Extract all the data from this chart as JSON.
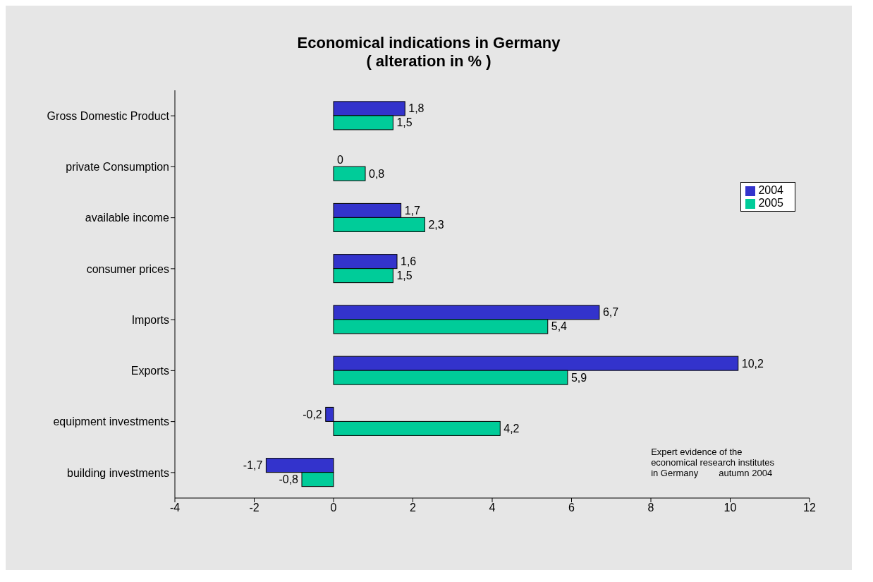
{
  "chart_data": {
    "type": "bar",
    "orientation": "horizontal",
    "title": "Economical indications in Germany",
    "subtitle": "( alteration in % )",
    "categories": [
      "Gross Domestic Product",
      "private Consumption",
      "available income",
      "consumer prices",
      "Imports",
      "Exports",
      "equipment investments",
      "building investments"
    ],
    "series": [
      {
        "name": "2004",
        "color": "#3333cc",
        "values": [
          1.8,
          0,
          1.7,
          1.6,
          6.7,
          10.2,
          -0.2,
          -1.7
        ],
        "value_labels": [
          "1,8",
          "0",
          "1,7",
          "1,6",
          "6,7",
          "10,2",
          "-0,2",
          "-1,7"
        ]
      },
      {
        "name": "2005",
        "color": "#00cc99",
        "values": [
          1.5,
          0.8,
          2.3,
          1.5,
          5.4,
          5.9,
          4.2,
          -0.8
        ],
        "value_labels": [
          "1,5",
          "0,8",
          "2,3",
          "1,5",
          "5,4",
          "5,9",
          "4,2",
          "-0,8"
        ]
      }
    ],
    "xlim": [
      -4,
      12
    ],
    "xticks": [
      -4,
      -2,
      0,
      2,
      4,
      6,
      8,
      10,
      12
    ],
    "legend": "top right",
    "annotations": [
      "Expert evidence of the\neconomical research institutes\nin Germany        autumn 2004"
    ]
  }
}
